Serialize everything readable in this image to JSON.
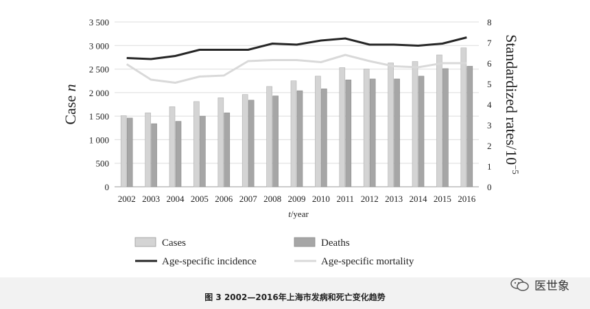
{
  "chart_data": {
    "type": "bar",
    "categories": [
      "2002",
      "2003",
      "2004",
      "2005",
      "2006",
      "2007",
      "2008",
      "2009",
      "2010",
      "2011",
      "2012",
      "2013",
      "2014",
      "2015",
      "2016"
    ],
    "series": [
      {
        "name": "Cases",
        "type": "bar",
        "axis": "left",
        "color": "#d4d4d4",
        "values": [
          1510,
          1570,
          1700,
          1810,
          1890,
          1960,
          2130,
          2250,
          2350,
          2530,
          2500,
          2630,
          2660,
          2800,
          2950
        ]
      },
      {
        "name": "Deaths",
        "type": "bar",
        "axis": "left",
        "color": "#a6a6a6",
        "values": [
          1460,
          1340,
          1390,
          1500,
          1570,
          1840,
          1930,
          2040,
          2080,
          2270,
          2290,
          2290,
          2350,
          2510,
          2560
        ]
      },
      {
        "name": "Age-specific incidence",
        "type": "line",
        "axis": "right",
        "color": "#262626",
        "values": [
          6.25,
          6.2,
          6.35,
          6.65,
          6.65,
          6.65,
          6.95,
          6.9,
          7.1,
          7.2,
          6.9,
          6.9,
          6.85,
          6.95,
          7.25
        ]
      },
      {
        "name": "Age-specific mortality",
        "type": "line",
        "axis": "right",
        "color": "#d9d9d9",
        "values": [
          5.95,
          5.2,
          5.05,
          5.35,
          5.4,
          6.1,
          6.15,
          6.15,
          6.05,
          6.4,
          6.1,
          5.85,
          5.8,
          6.0,
          6.0
        ]
      }
    ],
    "left_axis": {
      "label_main": "Case ",
      "label_italic": "n",
      "ylim": [
        0,
        3500
      ],
      "ticks": [
        0,
        500,
        1000,
        1500,
        2000,
        2500,
        3000,
        3500
      ],
      "tick_labels": [
        "0",
        "500",
        "1 000",
        "1 500",
        "2 000",
        "2 500",
        "3 000",
        "3 500"
      ]
    },
    "right_axis": {
      "label": "Standardized rates/10",
      "label_sup": "−5",
      "ylim": [
        0,
        8
      ],
      "ticks": [
        0,
        1,
        2,
        3,
        4,
        5,
        6,
        7,
        8
      ],
      "tick_labels": [
        "0",
        "1",
        "2",
        "3",
        "4",
        "5",
        "6",
        "7",
        "8"
      ]
    },
    "x_axis": {
      "label_italic": "t",
      "label_rest": "/year"
    },
    "grid": true,
    "legend": "bottom"
  },
  "caption": "图 3   2002—2016年上海市发病和死亡变化趋势",
  "watermark": {
    "text": "医世象",
    "icon": "wechat-icon"
  }
}
